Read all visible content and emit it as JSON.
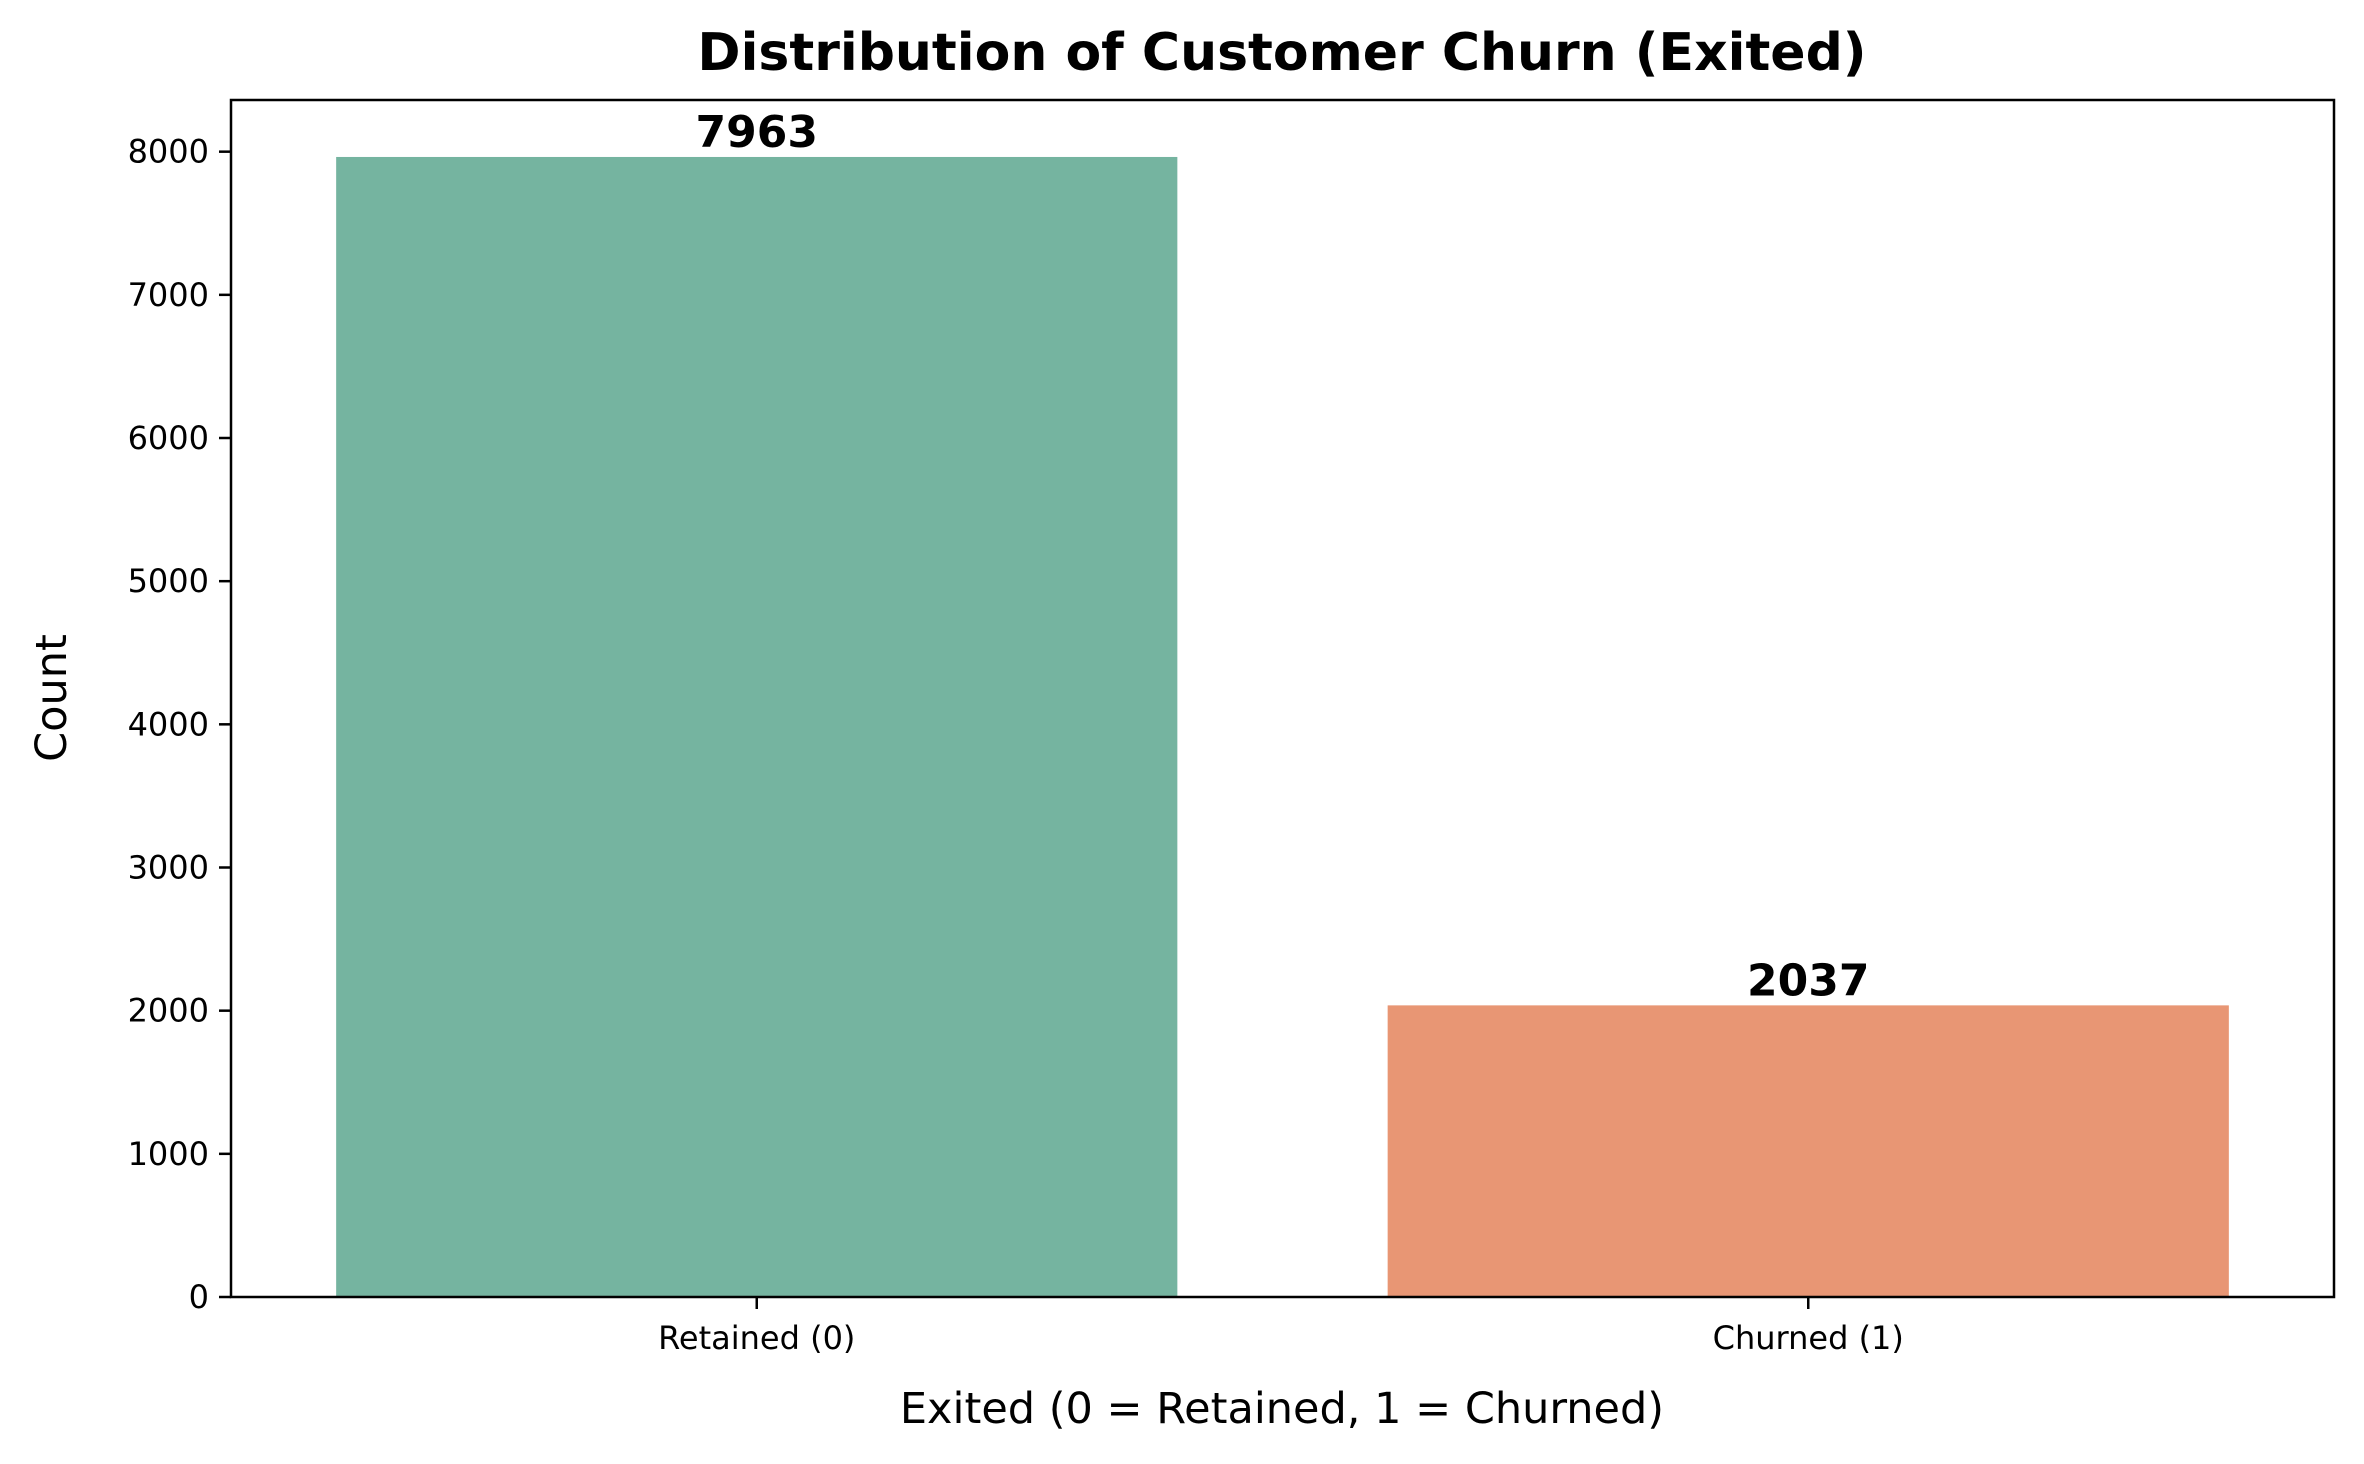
{
  "chart_data": {
    "type": "bar",
    "title": "Distribution of Customer Churn (Exited)",
    "xlabel": "Exited (0 = Retained, 1 = Churned)",
    "ylabel": "Count",
    "categories": [
      "Retained (0)",
      "Churned (1)"
    ],
    "values": [
      7963,
      2037
    ],
    "data_labels": [
      "7963",
      "2037"
    ],
    "colors": [
      "#75b4a0",
      "#e89674"
    ],
    "ylim": [
      0,
      8360.9
    ],
    "yticks": [
      0,
      1000,
      2000,
      3000,
      4000,
      5000,
      6000,
      7000,
      8000
    ],
    "grid": false,
    "legend": "none"
  }
}
